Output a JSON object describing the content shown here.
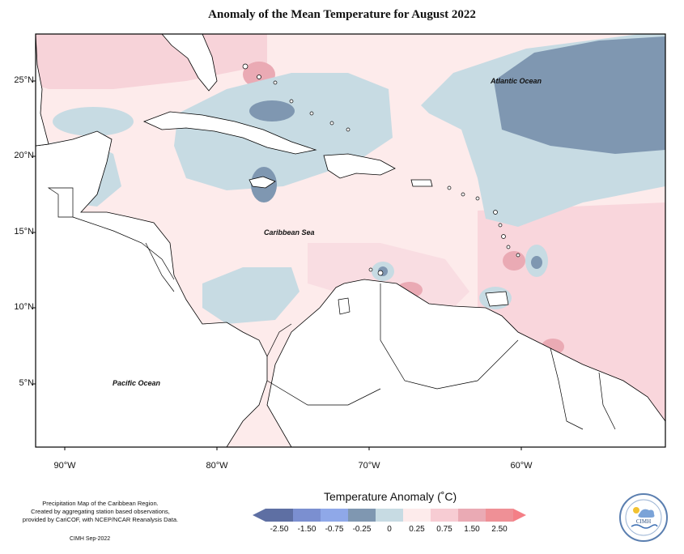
{
  "title": "Anomaly of the Mean Temperature for August 2022",
  "axes": {
    "lat_ticks": [
      "25°N",
      "20°N",
      "15°N",
      "10°N",
      "5°N"
    ],
    "lon_ticks": [
      "90°W",
      "80°W",
      "70°W",
      "60°W"
    ]
  },
  "labels": {
    "atlantic": "Atlantic Ocean",
    "caribbean": "Caribbean Sea",
    "pacific": "Pacific Ocean"
  },
  "credit": {
    "line1": "Precipitation Map of the Caribbean Region.",
    "line2": "Created by aggregating station based observations,",
    "line3": "provided by CariCOF, with NCEP/NCAR Reanalysis Data.",
    "date": "CIMH Sep-2022"
  },
  "legend": {
    "title": "Temperature Anomaly (˚C)",
    "labels": [
      "-2.50",
      "-1.50",
      "-0.75",
      "-0.25",
      "0",
      "0.25",
      "0.75",
      "1.50",
      "2.50"
    ],
    "colors": [
      "#5e6fa3",
      "#7b8fd0",
      "#8fa8e8",
      "#7f97b1",
      "#c7dbe3",
      "#fdebeb",
      "#f7ccd3",
      "#eaaab4",
      "#ef9096"
    ]
  },
  "logo_text": "CIMH",
  "colors": {
    "land": "#ffffff",
    "coast": "#000000",
    "neutral": "#fdebeb"
  }
}
